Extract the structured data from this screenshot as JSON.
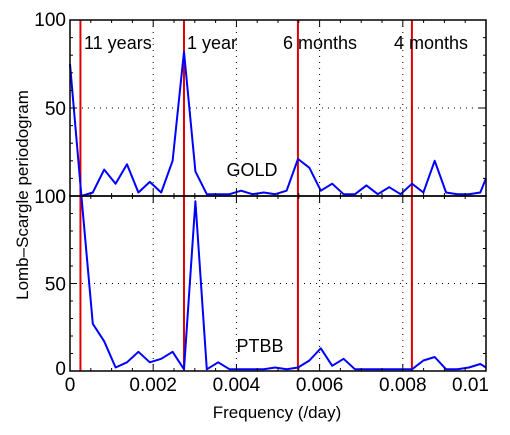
{
  "chart_data": [
    {
      "type": "line",
      "name": "GOLD",
      "label": "GOLD",
      "x": [
        0.0,
        0.000274,
        0.000548,
        0.000822,
        0.001096,
        0.00137,
        0.001644,
        0.001918,
        0.002192,
        0.002466,
        0.00274,
        0.003014,
        0.003288,
        0.003562,
        0.003836,
        0.00411,
        0.004384,
        0.004658,
        0.004932,
        0.005206,
        0.00548,
        0.005754,
        0.006028,
        0.006302,
        0.006576,
        0.00685,
        0.007124,
        0.007398,
        0.007672,
        0.007946,
        0.00822,
        0.008494,
        0.008768,
        0.009042,
        0.009316,
        0.00959,
        0.009864,
        0.01
      ],
      "y": [
        75,
        0,
        2,
        15,
        7,
        18,
        2,
        8,
        2,
        20,
        82,
        14,
        1,
        1,
        1,
        3,
        1,
        2,
        1,
        3,
        21,
        16,
        3,
        7,
        1,
        1,
        6,
        1,
        5,
        1,
        7,
        2,
        20,
        2,
        1,
        1,
        2,
        10
      ],
      "xlim": [
        0,
        0.01
      ],
      "ylim": [
        0,
        100
      ],
      "yticks": [
        "0",
        "50",
        "100"
      ],
      "grid": true
    },
    {
      "type": "line",
      "name": "PTBB",
      "label": "PTBB",
      "x": [
        0.000274,
        0.000548,
        0.000822,
        0.001096,
        0.00137,
        0.001644,
        0.001918,
        0.002192,
        0.002466,
        0.00274,
        0.003014,
        0.003288,
        0.003562,
        0.003836,
        0.00411,
        0.004384,
        0.004658,
        0.004932,
        0.005206,
        0.00548,
        0.005754,
        0.006028,
        0.006302,
        0.006576,
        0.00685,
        0.007124,
        0.007398,
        0.007672,
        0.007946,
        0.00822,
        0.008494,
        0.008768,
        0.009042,
        0.009316,
        0.00959,
        0.009864,
        0.01
      ],
      "y": [
        100,
        27,
        17,
        2,
        5,
        11,
        5,
        7,
        11,
        1,
        97,
        1,
        5,
        1,
        1,
        1,
        1,
        2,
        1,
        2,
        6,
        13,
        3,
        7,
        1,
        1,
        1,
        1,
        1,
        1,
        6,
        8,
        1,
        1,
        2,
        4,
        2
      ],
      "xlim": [
        0,
        0.01
      ],
      "ylim": [
        0,
        100
      ],
      "yticks": [
        "0",
        "50",
        "100"
      ],
      "grid": true
    }
  ],
  "axes": {
    "xlabel": "Frequency (/day)",
    "ylabel": "Lomb–Scargle periodogram",
    "xticks": [
      {
        "value": 0,
        "label": "0"
      },
      {
        "value": 0.002,
        "label": "0.002"
      },
      {
        "value": 0.004,
        "label": "0.004"
      },
      {
        "value": 0.006,
        "label": "0.006"
      },
      {
        "value": 0.008,
        "label": "0.008"
      },
      {
        "value": 0.01,
        "label": "0.01"
      }
    ]
  },
  "period_lines": [
    {
      "x": 0.000251,
      "label": "11 years"
    },
    {
      "x": 0.00274,
      "label": "1 year"
    },
    {
      "x": 0.005479,
      "label": "6 months"
    },
    {
      "x": 0.008219,
      "label": "4 months"
    }
  ],
  "colors": {
    "series": "#0000ff",
    "period_line": "#dd0000",
    "axis": "#000000",
    "grid": "#000000"
  }
}
